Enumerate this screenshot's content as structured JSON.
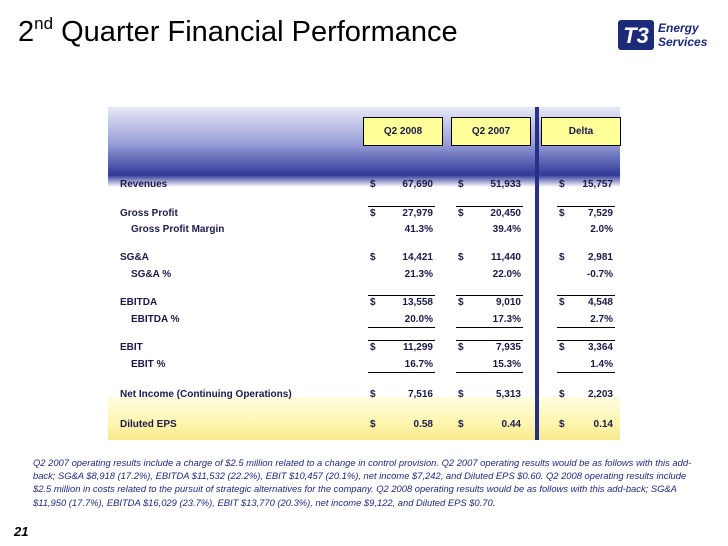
{
  "header": {
    "title": {
      "number": "2",
      "suffix": "nd",
      "text": "Quarter Financial Performance"
    },
    "logo": {
      "mark": "T3",
      "line1": "Energy",
      "line2": "Services"
    }
  },
  "table": {
    "columns": [
      "Q2 2008",
      "Q2 2007",
      "Delta"
    ],
    "rows": [
      {
        "label": "Revenues",
        "cells": [
          {
            "symbol": "$",
            "value": "67,690"
          },
          {
            "symbol": "$",
            "value": "51,933"
          },
          {
            "symbol": "$",
            "value": "15,757"
          }
        ]
      },
      {
        "label": "Gross Profit",
        "cells": [
          {
            "symbol": "$",
            "value": "27,979"
          },
          {
            "symbol": "$",
            "value": "20,450"
          },
          {
            "symbol": "$",
            "value": "7,529"
          }
        ]
      },
      {
        "label": "Gross Profit Margin",
        "cells": [
          {
            "value": "41.3%"
          },
          {
            "value": "39.4%"
          },
          {
            "value": "2.0%"
          }
        ]
      },
      {
        "label": "SG&A",
        "cells": [
          {
            "symbol": "$",
            "value": "14,421"
          },
          {
            "symbol": "$",
            "value": "11,440"
          },
          {
            "symbol": "$",
            "value": "2,981"
          }
        ]
      },
      {
        "label": "SG&A %",
        "cells": [
          {
            "value": "21.3%"
          },
          {
            "value": "22.0%"
          },
          {
            "value": "-0.7%"
          }
        ]
      },
      {
        "label": "EBITDA",
        "cells": [
          {
            "symbol": "$",
            "value": "13,558"
          },
          {
            "symbol": "$",
            "value": "9,010"
          },
          {
            "symbol": "$",
            "value": "4,548"
          }
        ]
      },
      {
        "label": "EBITDA %",
        "cells": [
          {
            "value": "20.0%"
          },
          {
            "value": "17.3%"
          },
          {
            "value": "2.7%"
          }
        ]
      },
      {
        "label": "EBIT",
        "cells": [
          {
            "symbol": "$",
            "value": "11,299"
          },
          {
            "symbol": "$",
            "value": "7,935"
          },
          {
            "symbol": "$",
            "value": "3,364"
          }
        ]
      },
      {
        "label": "EBIT %",
        "cells": [
          {
            "value": "16.7%"
          },
          {
            "value": "15.3%"
          },
          {
            "value": "1.4%"
          }
        ]
      },
      {
        "label": "Net Income (Continuing Operations)",
        "cells": [
          {
            "symbol": "$",
            "value": "7,516"
          },
          {
            "symbol": "$",
            "value": "5,313"
          },
          {
            "symbol": "$",
            "value": "2,203"
          }
        ]
      },
      {
        "label": "Diluted EPS",
        "cells": [
          {
            "symbol": "$",
            "value": "0.58"
          },
          {
            "symbol": "$",
            "value": "0.44"
          },
          {
            "symbol": "$",
            "value": "0.14"
          }
        ]
      }
    ]
  },
  "footnote": "Q2 2007 operating results include a charge of $2.5 million related to a change in control provision. Q2 2007 operating results would be as follows with this add-back; SG&A $8,918 (17.2%), EBITDA $11,532 (22.2%), EBIT $10,457 (20.1%), net income $7,242, and Diluted EPS $0.60.  Q2 2008 operating results include $2.5 million in costs related to the pursuit of strategic alternatives for the company. Q2 2008 operating results would be as follows with this add-back; SG&A $11,950 (17.7%), EBITDA $16,029 (23.7%), EBIT $13,770 (20.3%), net income $9,122, and Diluted EPS $0.70.",
  "page_number": "21"
}
